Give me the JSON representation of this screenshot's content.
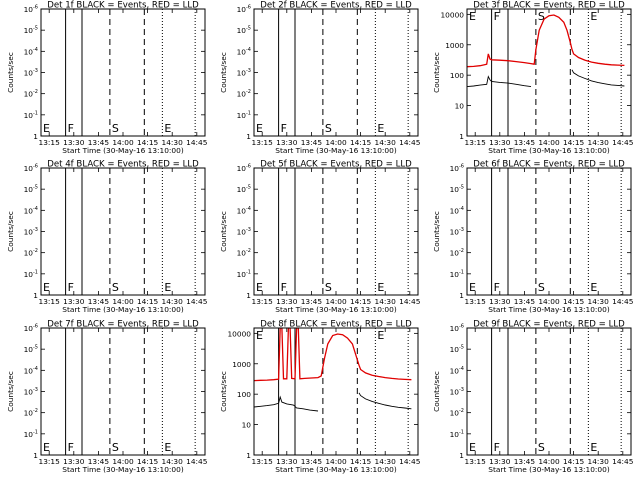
{
  "figure": {
    "xlabel": "Start Time (30-May-16 13:10:00)",
    "ylabel": "Counts/sec",
    "x_tick_labels": [
      "13:15",
      "13:30",
      "13:45",
      "14:00",
      "14:15",
      "14:30",
      "14:45"
    ],
    "colors": {
      "events": "#000000",
      "lld": "#e00000"
    }
  },
  "chart_data": [
    {
      "type": "line",
      "title": "Det 1f BLACK = Events, RED = LLD",
      "xlim": [
        "13:10",
        "14:50"
      ],
      "yscale": "log",
      "ylim": [
        1,
        1e-06
      ],
      "y_ticks": [
        1,
        0.1,
        0.01,
        0.001,
        0.0001,
        1e-05,
        1e-06
      ],
      "markers": [
        {
          "label": "E",
          "time": "13:10",
          "style": "dotted"
        },
        {
          "label": "F",
          "time": "13:25",
          "style": "solid"
        },
        {
          "label": "",
          "time": "13:35",
          "style": "solid"
        },
        {
          "label": "S",
          "time": "13:52",
          "style": "dashed"
        },
        {
          "label": "",
          "time": "14:13",
          "style": "dashed"
        },
        {
          "label": "E",
          "time": "14:24",
          "style": "dotted"
        },
        {
          "label": "",
          "time": "14:44",
          "style": "dotted"
        }
      ],
      "series": []
    },
    {
      "type": "line",
      "title": "Det 2f BLACK = Events, RED = LLD",
      "xlim": [
        "13:10",
        "14:50"
      ],
      "yscale": "log",
      "ylim": [
        1,
        1e-06
      ],
      "y_ticks": [
        1,
        0.1,
        0.01,
        0.001,
        0.0001,
        1e-05,
        1e-06
      ],
      "markers": [
        {
          "label": "E",
          "time": "13:10",
          "style": "dotted"
        },
        {
          "label": "F",
          "time": "13:25",
          "style": "solid"
        },
        {
          "label": "",
          "time": "13:35",
          "style": "solid"
        },
        {
          "label": "S",
          "time": "13:52",
          "style": "dashed"
        },
        {
          "label": "",
          "time": "14:13",
          "style": "dashed"
        },
        {
          "label": "E",
          "time": "14:24",
          "style": "dotted"
        },
        {
          "label": "",
          "time": "14:44",
          "style": "dotted"
        }
      ],
      "series": []
    },
    {
      "type": "line",
      "title": "Det 3f BLACK = Events, RED = LLD",
      "xlim": [
        "13:10",
        "14:50"
      ],
      "yscale": "log",
      "ylim": [
        1,
        15000
      ],
      "y_ticks": [
        1,
        10,
        100,
        1000,
        10000
      ],
      "markers": [
        {
          "label": "E",
          "time": "13:10",
          "style": "dotted"
        },
        {
          "label": "F",
          "time": "13:25",
          "style": "solid"
        },
        {
          "label": "",
          "time": "13:35",
          "style": "solid"
        },
        {
          "label": "S",
          "time": "13:52",
          "style": "dashed"
        },
        {
          "label": "",
          "time": "14:13",
          "style": "dashed"
        },
        {
          "label": "E",
          "time": "14:24",
          "style": "dotted"
        },
        {
          "label": "",
          "time": "14:44",
          "style": "dotted"
        }
      ],
      "series": [
        {
          "role": "events",
          "color": "#000000",
          "points": [
            [
              "13:10",
              42
            ],
            [
              "13:14",
              44
            ],
            [
              "13:18",
              47
            ],
            [
              "13:22",
              50
            ],
            [
              "13:23",
              90
            ],
            [
              "13:24",
              70
            ],
            [
              "13:25",
              62
            ],
            [
              "13:30",
              58
            ],
            [
              "13:35",
              55
            ],
            [
              "13:40",
              50
            ],
            [
              "13:45",
              45
            ],
            [
              "13:49",
              42
            ]
          ]
        },
        {
          "role": "events",
          "color": "#000000",
          "points": [
            [
              "14:14",
              150
            ],
            [
              "14:15",
              120
            ],
            [
              "14:18",
              95
            ],
            [
              "14:22",
              78
            ],
            [
              "14:26",
              65
            ],
            [
              "14:30",
              57
            ],
            [
              "14:34",
              52
            ],
            [
              "14:38",
              48
            ],
            [
              "14:42",
              46
            ],
            [
              "14:46",
              44
            ]
          ]
        },
        {
          "role": "lld",
          "color": "#e00000",
          "points": [
            [
              "13:10",
              190
            ],
            [
              "13:14",
              195
            ],
            [
              "13:18",
              205
            ],
            [
              "13:22",
              230
            ],
            [
              "13:23",
              500
            ],
            [
              "13:24",
              340
            ],
            [
              "13:25",
              320
            ],
            [
              "13:30",
              310
            ],
            [
              "13:35",
              300
            ],
            [
              "13:40",
              280
            ],
            [
              "13:45",
              260
            ],
            [
              "13:49",
              240
            ],
            [
              "13:51",
              230
            ],
            [
              "13:52",
              700
            ],
            [
              "13:54",
              3000
            ],
            [
              "13:57",
              7000
            ],
            [
              "14:00",
              9000
            ],
            [
              "14:03",
              9500
            ],
            [
              "14:06",
              8000
            ],
            [
              "14:09",
              5500
            ],
            [
              "14:11",
              3000
            ],
            [
              "14:13",
              1200
            ],
            [
              "14:14",
              700
            ],
            [
              "14:15",
              500
            ],
            [
              "14:18",
              380
            ],
            [
              "14:22",
              310
            ],
            [
              "14:26",
              270
            ],
            [
              "14:30",
              245
            ],
            [
              "14:34",
              230
            ],
            [
              "14:38",
              220
            ],
            [
              "14:42",
              215
            ],
            [
              "14:46",
              210
            ]
          ]
        }
      ]
    },
    {
      "type": "line",
      "title": "Det 4f BLACK = Events, RED = LLD",
      "xlim": [
        "13:10",
        "14:50"
      ],
      "yscale": "log",
      "ylim": [
        1,
        1e-06
      ],
      "y_ticks": [
        1,
        0.1,
        0.01,
        0.001,
        0.0001,
        1e-05,
        1e-06
      ],
      "markers": [
        {
          "label": "E",
          "time": "13:10",
          "style": "dotted"
        },
        {
          "label": "F",
          "time": "13:25",
          "style": "solid"
        },
        {
          "label": "",
          "time": "13:35",
          "style": "solid"
        },
        {
          "label": "S",
          "time": "13:52",
          "style": "dashed"
        },
        {
          "label": "",
          "time": "14:13",
          "style": "dashed"
        },
        {
          "label": "E",
          "time": "14:24",
          "style": "dotted"
        },
        {
          "label": "",
          "time": "14:44",
          "style": "dotted"
        }
      ],
      "series": []
    },
    {
      "type": "line",
      "title": "Det 5f BLACK = Events, RED = LLD",
      "xlim": [
        "13:10",
        "14:50"
      ],
      "yscale": "log",
      "ylim": [
        1,
        1e-06
      ],
      "y_ticks": [
        1,
        0.1,
        0.01,
        0.001,
        0.0001,
        1e-05,
        1e-06
      ],
      "markers": [
        {
          "label": "E",
          "time": "13:10",
          "style": "dotted"
        },
        {
          "label": "F",
          "time": "13:25",
          "style": "solid"
        },
        {
          "label": "",
          "time": "13:35",
          "style": "solid"
        },
        {
          "label": "S",
          "time": "13:52",
          "style": "dashed"
        },
        {
          "label": "",
          "time": "14:13",
          "style": "dashed"
        },
        {
          "label": "E",
          "time": "14:24",
          "style": "dotted"
        },
        {
          "label": "",
          "time": "14:44",
          "style": "dotted"
        }
      ],
      "series": []
    },
    {
      "type": "line",
      "title": "Det 6f BLACK = Events, RED = LLD",
      "xlim": [
        "13:10",
        "14:50"
      ],
      "yscale": "log",
      "ylim": [
        1,
        1e-06
      ],
      "y_ticks": [
        1,
        0.1,
        0.01,
        0.001,
        0.0001,
        1e-05,
        1e-06
      ],
      "markers": [
        {
          "label": "E",
          "time": "13:10",
          "style": "dotted"
        },
        {
          "label": "F",
          "time": "13:25",
          "style": "solid"
        },
        {
          "label": "",
          "time": "13:35",
          "style": "solid"
        },
        {
          "label": "S",
          "time": "13:52",
          "style": "dashed"
        },
        {
          "label": "",
          "time": "14:13",
          "style": "dashed"
        },
        {
          "label": "E",
          "time": "14:24",
          "style": "dotted"
        },
        {
          "label": "",
          "time": "14:44",
          "style": "dotted"
        }
      ],
      "series": []
    },
    {
      "type": "line",
      "title": "Det 7f BLACK = Events, RED = LLD",
      "xlim": [
        "13:10",
        "14:50"
      ],
      "yscale": "log",
      "ylim": [
        1,
        1e-06
      ],
      "y_ticks": [
        1,
        0.1,
        0.01,
        0.001,
        0.0001,
        1e-05,
        1e-06
      ],
      "markers": [
        {
          "label": "E",
          "time": "13:10",
          "style": "dotted"
        },
        {
          "label": "F",
          "time": "13:25",
          "style": "solid"
        },
        {
          "label": "",
          "time": "13:35",
          "style": "solid"
        },
        {
          "label": "S",
          "time": "13:52",
          "style": "dashed"
        },
        {
          "label": "",
          "time": "14:13",
          "style": "dashed"
        },
        {
          "label": "E",
          "time": "14:24",
          "style": "dotted"
        },
        {
          "label": "",
          "time": "14:44",
          "style": "dotted"
        }
      ],
      "series": []
    },
    {
      "type": "line",
      "title": "Det 8f BLACK = Events, RED = LLD",
      "xlim": [
        "13:10",
        "14:50"
      ],
      "yscale": "log",
      "ylim": [
        1,
        15000
      ],
      "y_ticks": [
        1,
        10,
        100,
        1000,
        10000
      ],
      "markers": [
        {
          "label": "E",
          "time": "13:10",
          "style": "dotted"
        },
        {
          "label": "",
          "time": "13:25",
          "style": "solid"
        },
        {
          "label": "",
          "time": "13:35",
          "style": "solid"
        },
        {
          "label": "",
          "time": "13:52",
          "style": "dashed"
        },
        {
          "label": "",
          "time": "14:13",
          "style": "dashed"
        },
        {
          "label": "E",
          "time": "14:24",
          "style": "dotted"
        },
        {
          "label": "",
          "time": "14:44",
          "style": "dotted"
        }
      ],
      "series": [
        {
          "role": "events",
          "color": "#000000",
          "points": [
            [
              "13:10",
              38
            ],
            [
              "13:14",
              40
            ],
            [
              "13:18",
              42
            ],
            [
              "13:22",
              45
            ],
            [
              "13:25",
              50
            ],
            [
              "13:26",
              80
            ],
            [
              "13:27",
              55
            ],
            [
              "13:30",
              48
            ],
            [
              "13:34",
              44
            ],
            [
              "13:35",
              40
            ],
            [
              "13:36",
              35
            ],
            [
              "13:40",
              33
            ],
            [
              "13:44",
              30
            ],
            [
              "13:49",
              28
            ]
          ]
        },
        {
          "role": "events",
          "color": "#000000",
          "points": [
            [
              "14:14",
              110
            ],
            [
              "14:15",
              90
            ],
            [
              "14:18",
              70
            ],
            [
              "14:22",
              58
            ],
            [
              "14:26",
              50
            ],
            [
              "14:30",
              44
            ],
            [
              "14:34",
              40
            ],
            [
              "14:38",
              37
            ],
            [
              "14:42",
              35
            ],
            [
              "14:46",
              33
            ]
          ]
        },
        {
          "role": "lld",
          "color": "#e00000",
          "points": [
            [
              "13:10",
              280
            ],
            [
              "13:14",
              285
            ],
            [
              "13:18",
              290
            ],
            [
              "13:22",
              300
            ],
            [
              "13:25",
              310
            ],
            [
              "13:26",
              15000
            ],
            [
              "13:27",
              15000
            ],
            [
              "13:28",
              320
            ],
            [
              "13:30",
              320
            ],
            [
              "13:31",
              15000
            ],
            [
              "13:32",
              15000
            ],
            [
              "13:33",
              330
            ],
            [
              "13:35",
              320
            ],
            [
              "13:36",
              15000
            ],
            [
              "13:37",
              15000
            ],
            [
              "13:38",
              320
            ],
            [
              "13:41",
              330
            ],
            [
              "13:45",
              340
            ],
            [
              "13:49",
              350
            ],
            [
              "13:51",
              400
            ],
            [
              "13:53",
              1500
            ],
            [
              "13:55",
              4500
            ],
            [
              "13:58",
              8500
            ],
            [
              "14:01",
              9500
            ],
            [
              "14:04",
              9000
            ],
            [
              "14:07",
              7000
            ],
            [
              "14:10",
              4500
            ],
            [
              "14:12",
              2000
            ],
            [
              "14:14",
              900
            ],
            [
              "14:15",
              650
            ],
            [
              "14:18",
              500
            ],
            [
              "14:22",
              420
            ],
            [
              "14:26",
              380
            ],
            [
              "14:30",
              350
            ],
            [
              "14:34",
              330
            ],
            [
              "14:38",
              315
            ],
            [
              "14:42",
              305
            ],
            [
              "14:46",
              300
            ]
          ]
        }
      ]
    },
    {
      "type": "line",
      "title": "Det 9f BLACK = Events, RED = LLD",
      "xlim": [
        "13:10",
        "14:50"
      ],
      "yscale": "log",
      "ylim": [
        1,
        1e-06
      ],
      "y_ticks": [
        1,
        0.1,
        0.01,
        0.001,
        0.0001,
        1e-05,
        1e-06
      ],
      "markers": [
        {
          "label": "E",
          "time": "13:10",
          "style": "dotted"
        },
        {
          "label": "F",
          "time": "13:25",
          "style": "solid"
        },
        {
          "label": "",
          "time": "13:35",
          "style": "solid"
        },
        {
          "label": "S",
          "time": "13:52",
          "style": "dashed"
        },
        {
          "label": "",
          "time": "14:13",
          "style": "dashed"
        },
        {
          "label": "E",
          "time": "14:24",
          "style": "dotted"
        },
        {
          "label": "",
          "time": "14:44",
          "style": "dotted"
        }
      ],
      "series": []
    }
  ]
}
